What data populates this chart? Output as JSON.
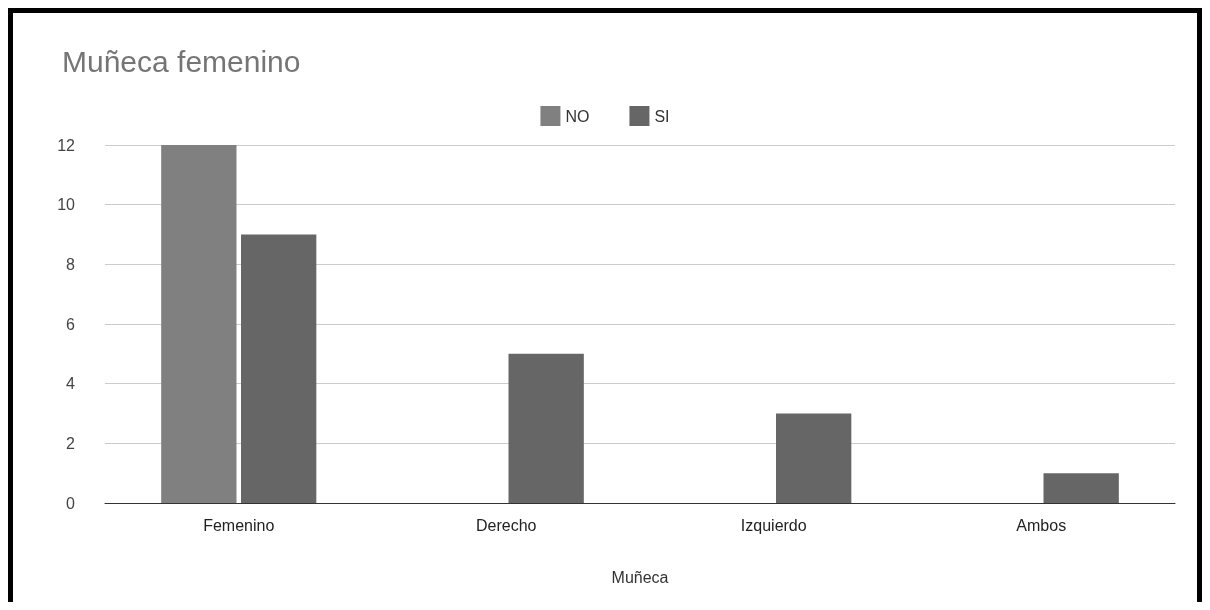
{
  "chart_data": {
    "type": "bar",
    "title": "Muñeca femenino",
    "xlabel": "Muñeca",
    "categories": [
      "Femenino",
      "Derecho",
      "Izquierdo",
      "Ambos"
    ],
    "series": [
      {
        "name": "NO",
        "color": "#808080",
        "values": [
          12,
          null,
          null,
          null
        ]
      },
      {
        "name": "SI",
        "color": "#666666",
        "values": [
          9,
          5,
          3,
          1
        ]
      }
    ],
    "ylim": [
      0,
      12
    ],
    "yticks": [
      0,
      2,
      4,
      6,
      8,
      10,
      12
    ],
    "grid": "y",
    "legend": "top"
  }
}
